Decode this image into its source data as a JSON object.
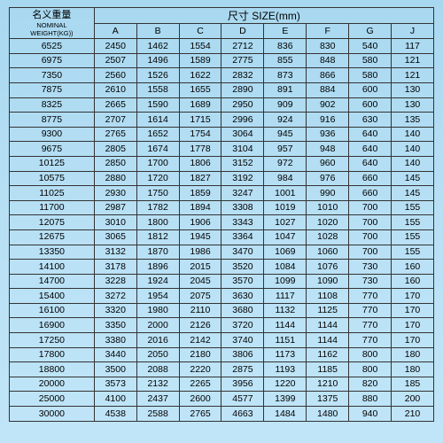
{
  "header": {
    "nominal_cn": "名义重量",
    "nominal_en1": "NOMINAL",
    "nominal_en2": "WEIGHT(KG))",
    "size_label": "尺寸 SIZE(mm)",
    "size_fontsize": 12,
    "nominal_cn_fontsize": 11,
    "nominal_en_fontsize": 7.5
  },
  "columns": [
    "A",
    "B",
    "C",
    "D",
    "E",
    "F",
    "G",
    "J"
  ],
  "column_width_first_pct": 20,
  "column_width_rest_pct": 10,
  "border_color": "#333333",
  "background_gradient": [
    "#a8d8f0",
    "#b8e0f5",
    "#c0e5f8"
  ],
  "text_color": "#000000",
  "cell_fontsize": 10.5,
  "rows": [
    {
      "w": "6525",
      "v": [
        "2450",
        "1462",
        "1554",
        "2712",
        "836",
        "830",
        "540",
        "117"
      ]
    },
    {
      "w": "6975",
      "v": [
        "2507",
        "1496",
        "1589",
        "2775",
        "855",
        "848",
        "580",
        "121"
      ]
    },
    {
      "w": "7350",
      "v": [
        "2560",
        "1526",
        "1622",
        "2832",
        "873",
        "866",
        "580",
        "121"
      ]
    },
    {
      "w": "7875",
      "v": [
        "2610",
        "1558",
        "1655",
        "2890",
        "891",
        "884",
        "600",
        "130"
      ]
    },
    {
      "w": "8325",
      "v": [
        "2665",
        "1590",
        "1689",
        "2950",
        "909",
        "902",
        "600",
        "130"
      ]
    },
    {
      "w": "8775",
      "v": [
        "2707",
        "1614",
        "1715",
        "2996",
        "924",
        "916",
        "630",
        "135"
      ]
    },
    {
      "w": "9300",
      "v": [
        "2765",
        "1652",
        "1754",
        "3064",
        "945",
        "936",
        "640",
        "140"
      ]
    },
    {
      "w": "9675",
      "v": [
        "2805",
        "1674",
        "1778",
        "3104",
        "957",
        "948",
        "640",
        "140"
      ]
    },
    {
      "w": "10125",
      "v": [
        "2850",
        "1700",
        "1806",
        "3152",
        "972",
        "960",
        "640",
        "140"
      ]
    },
    {
      "w": "10575",
      "v": [
        "2880",
        "1720",
        "1827",
        "3192",
        "984",
        "976",
        "660",
        "145"
      ]
    },
    {
      "w": "11025",
      "v": [
        "2930",
        "1750",
        "1859",
        "3247",
        "1001",
        "990",
        "660",
        "145"
      ]
    },
    {
      "w": "11700",
      "v": [
        "2987",
        "1782",
        "1894",
        "3308",
        "1019",
        "1010",
        "700",
        "155"
      ]
    },
    {
      "w": "12075",
      "v": [
        "3010",
        "1800",
        "1906",
        "3343",
        "1027",
        "1020",
        "700",
        "155"
      ]
    },
    {
      "w": "12675",
      "v": [
        "3065",
        "1812",
        "1945",
        "3364",
        "1047",
        "1028",
        "700",
        "155"
      ]
    },
    {
      "w": "13350",
      "v": [
        "3132",
        "1870",
        "1986",
        "3470",
        "1069",
        "1060",
        "700",
        "155"
      ]
    },
    {
      "w": "14100",
      "v": [
        "3178",
        "1896",
        "2015",
        "3520",
        "1084",
        "1076",
        "730",
        "160"
      ]
    },
    {
      "w": "14700",
      "v": [
        "3228",
        "1924",
        "2045",
        "3570",
        "1099",
        "1090",
        "730",
        "160"
      ]
    },
    {
      "w": "15400",
      "v": [
        "3272",
        "1954",
        "2075",
        "3630",
        "1117",
        "1108",
        "770",
        "170"
      ]
    },
    {
      "w": "16100",
      "v": [
        "3320",
        "1980",
        "2110",
        "3680",
        "1132",
        "1125",
        "770",
        "170"
      ]
    },
    {
      "w": "16900",
      "v": [
        "3350",
        "2000",
        "2126",
        "3720",
        "1144",
        "1144",
        "770",
        "170"
      ]
    },
    {
      "w": "17250",
      "v": [
        "3380",
        "2016",
        "2142",
        "3740",
        "1151",
        "1144",
        "770",
        "170"
      ]
    },
    {
      "w": "17800",
      "v": [
        "3440",
        "2050",
        "2180",
        "3806",
        "1173",
        "1162",
        "800",
        "180"
      ]
    },
    {
      "w": "18800",
      "v": [
        "3500",
        "2088",
        "2220",
        "2875",
        "1193",
        "1185",
        "800",
        "180"
      ]
    },
    {
      "w": "20000",
      "v": [
        "3573",
        "2132",
        "2265",
        "3956",
        "1220",
        "1210",
        "820",
        "185"
      ]
    },
    {
      "w": "25000",
      "v": [
        "4100",
        "2437",
        "2600",
        "4577",
        "1399",
        "1375",
        "880",
        "200"
      ]
    },
    {
      "w": "30000",
      "v": [
        "4538",
        "2588",
        "2765",
        "4663",
        "1484",
        "1480",
        "940",
        "210"
      ]
    }
  ]
}
